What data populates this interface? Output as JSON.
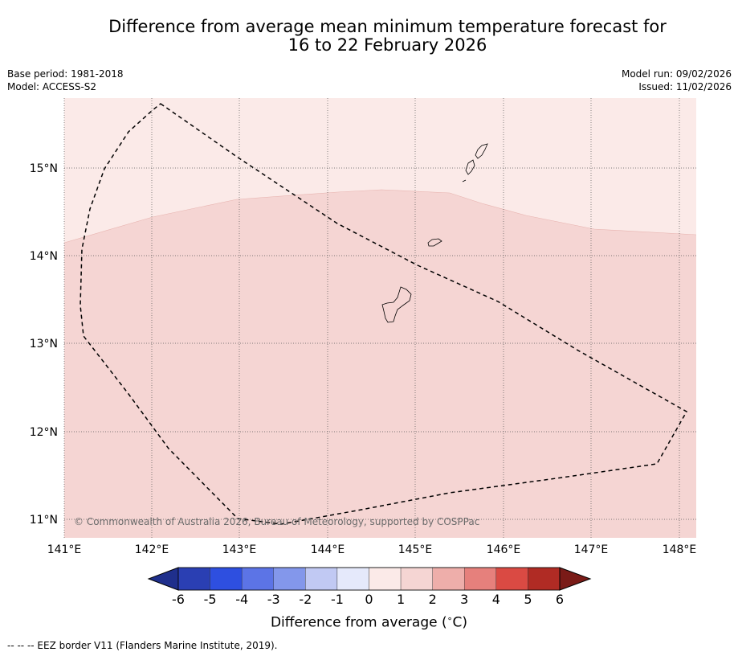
{
  "title": {
    "line1": "Difference from average mean minimum temperature forecast for",
    "line2": "16 to 22 February 2026"
  },
  "meta_left": {
    "base_period": "Base period: 1981-2018",
    "model": "Model: ACCESS-S2"
  },
  "meta_right": {
    "model_run": "Model run: 09/02/2026",
    "issued": "Issued: 11/02/2026"
  },
  "map": {
    "lat_labels": [
      "15°N",
      "14°N",
      "13°N",
      "12°N",
      "11°N"
    ],
    "lon_labels": [
      "141°E",
      "142°E",
      "143°E",
      "144°E",
      "145°E",
      "146°E",
      "147°E",
      "148°E"
    ],
    "copyright": "© Commonwealth of Australia 2026, Bureau of Meteorology, supported by COSPPac",
    "upper_band_color": "#fbeae8",
    "lower_band_color": "#f5d5d3"
  },
  "colorbar": {
    "labels": [
      "-6",
      "-5",
      "-4",
      "-3",
      "-2",
      "-1",
      "0",
      "1",
      "2",
      "3",
      "4",
      "5",
      "6"
    ],
    "colors": [
      "#2a3fb3",
      "#2e4fe0",
      "#5c74e6",
      "#8397eb",
      "#c1c9f3",
      "#e5e9fb",
      "#fbeae8",
      "#f5d5d3",
      "#eeaeaa",
      "#e6807c",
      "#da4a43",
      "#b02b24"
    ],
    "extend_low_color": "#1f2f8c",
    "extend_high_color": "#7a1b17",
    "title": "Difference from average (",
    "unit_degree": "∘",
    "title_suffix": "C)"
  },
  "legend": {
    "text": "-- -- -- EEZ border V11 (Flanders Marine Institute, 2019)."
  }
}
